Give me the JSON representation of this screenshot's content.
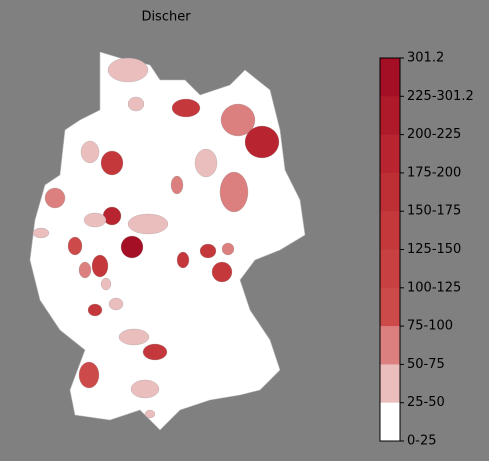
{
  "title": "Discher",
  "colorbar": {
    "labels": [
      "301.2",
      "225-301.2",
      "200-225",
      "175-200",
      "150-175",
      "125-150",
      "100-125",
      "75-100",
      "50-75",
      "25-50",
      "0-25"
    ],
    "colors": [
      "#a50f25",
      "#af1a2a",
      "#b82430",
      "#be2e35",
      "#c4373b",
      "#c94042",
      "#cd4a4a",
      "#db7f7f",
      "#ebbebe",
      "#ffffff"
    ]
  }
}
